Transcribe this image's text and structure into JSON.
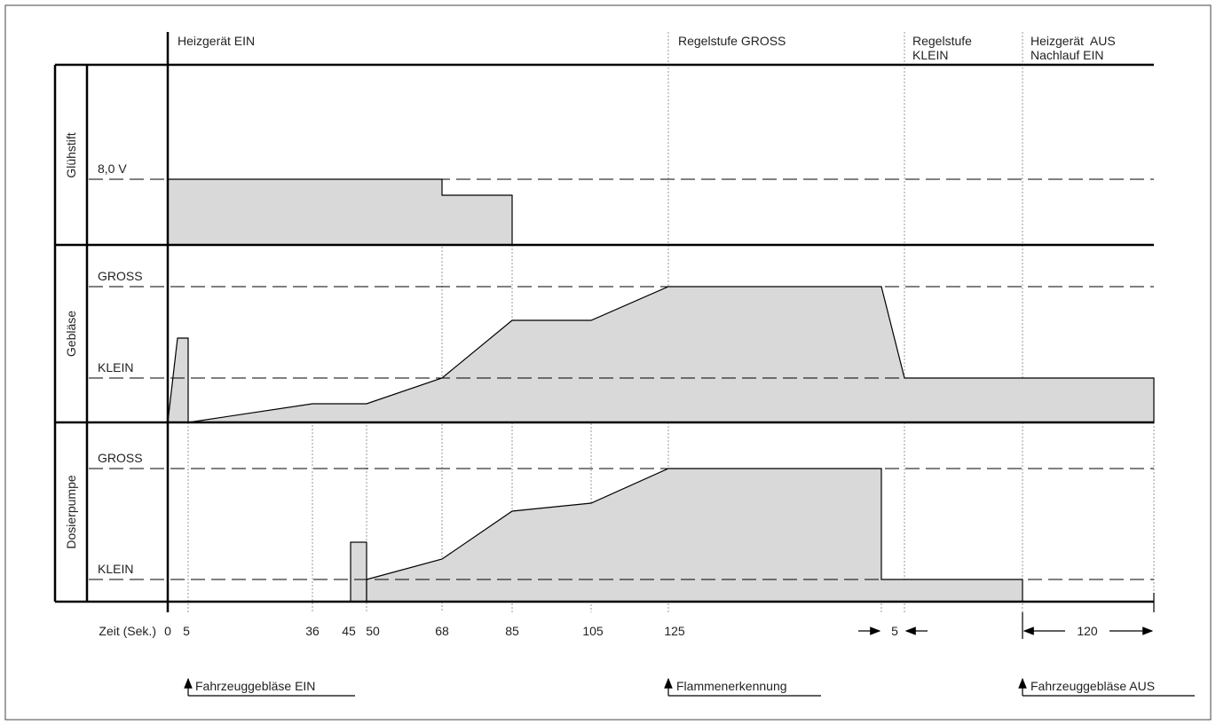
{
  "top_labels": [
    {
      "lines": [
        "Heizgerät EIN"
      ]
    },
    {
      "lines": [
        "Regelstufe GROSS"
      ]
    },
    {
      "lines": [
        "Regelstufe",
        "KLEIN"
      ]
    },
    {
      "lines": [
        "Heizgerät  AUS",
        "Nachlauf EIN"
      ]
    }
  ],
  "rows": [
    {
      "label": "Glühstift",
      "levels": [
        "8,0 V"
      ]
    },
    {
      "label": "Gebläse",
      "levels": [
        "GROSS",
        "KLEIN"
      ]
    },
    {
      "label": "Dosierpumpe",
      "levels": [
        "GROSS",
        "KLEIN"
      ]
    }
  ],
  "time_axis": {
    "label": "Zeit (Sek.)",
    "ticks": [
      0,
      5,
      36,
      45,
      50,
      68,
      85,
      105,
      125
    ],
    "durations": [
      5,
      120
    ]
  },
  "annotations": [
    "Fahrzeuggebläse EIN",
    "Flammenerkennung",
    "Fahrzeuggebläse AUS"
  ]
}
